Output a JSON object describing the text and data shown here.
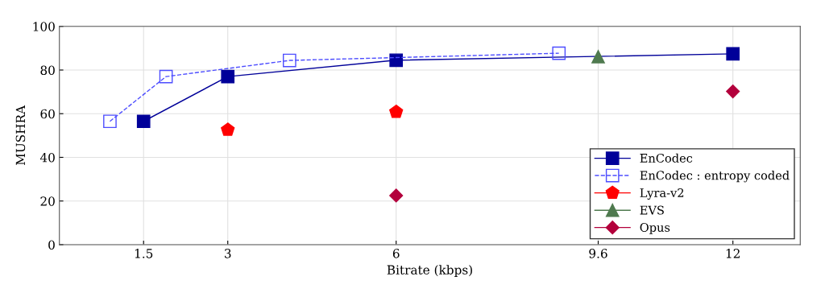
{
  "chart_data": {
    "type": "line",
    "xlabel": "Bitrate (kbps)",
    "ylabel": "MUSHRA",
    "xlim": [
      0,
      13.2
    ],
    "xticks": [
      1.5,
      3,
      6,
      9.6,
      12
    ],
    "ylim": [
      0,
      100
    ],
    "yticks": [
      0,
      20,
      40,
      60,
      80,
      100
    ],
    "grid": true,
    "legend": "bottom right",
    "series": [
      {
        "name": "EnCodec",
        "color": "#000099",
        "x": [
          1.5,
          3,
          6,
          12
        ],
        "values": [
          56.5,
          77,
          84.5,
          87.4
        ],
        "marker": "square",
        "line_style": "solid"
      },
      {
        "name": "EnCodec : entropy coded",
        "color": "#4d4dff",
        "x": [
          0.9,
          1.9,
          4.1,
          8.9
        ],
        "values": [
          56.5,
          77,
          84.4,
          87.7
        ],
        "marker": "square",
        "line_style": "dashed"
      },
      {
        "name": "Lyra-v2",
        "type": "scatter",
        "color": "#ff0000",
        "x": [
          3,
          6
        ],
        "values": [
          52.6,
          60.8
        ]
      },
      {
        "name": "EVS",
        "type": "scatter",
        "color": "#4f7a4f",
        "x": [
          9.6
        ],
        "values": [
          86.1
        ],
        "marker": "triangle"
      },
      {
        "name": "Opus",
        "type": "scatter",
        "color": "#b3003c",
        "x": [
          6,
          12
        ],
        "values": [
          22.5,
          70.2
        ],
        "marker": "diamond"
      }
    ]
  }
}
